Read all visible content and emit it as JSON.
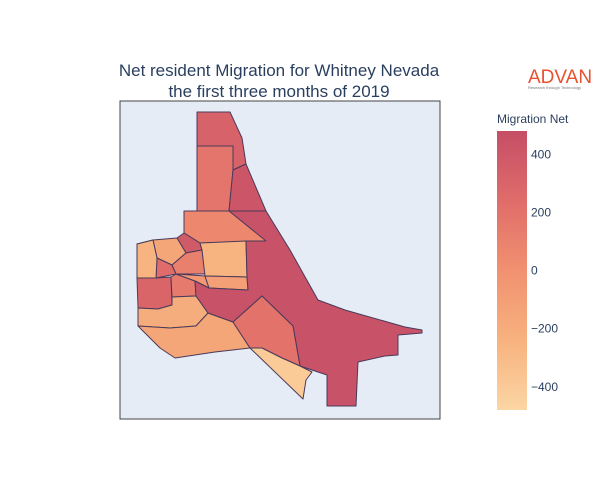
{
  "title": {
    "line1": "Net resident Migration for Whitney Nevada",
    "line2": "the first three months of 2019"
  },
  "logo": {
    "name": "ADVAN",
    "tagline": "Research through Technology",
    "color": "#e8502f"
  },
  "colorbar": {
    "title": "Migration Net",
    "ticks": [
      "400",
      "200",
      "0",
      "−200",
      "−400"
    ],
    "tick_values": [
      400,
      200,
      0,
      -200,
      -400
    ],
    "min": -480,
    "max": 480,
    "colors_low_to_high": [
      "#fbd6a3",
      "#f7b27f",
      "#f19170",
      "#e06c6a",
      "#c54e66"
    ]
  },
  "map": {
    "background": "#e5ecf6",
    "region_values": [
      320,
      180,
      420,
      60,
      380,
      -300,
      -150,
      250,
      120,
      -250,
      300,
      150,
      -200,
      -50,
      -100,
      -150,
      450,
      200,
      -250,
      -400
    ]
  }
}
